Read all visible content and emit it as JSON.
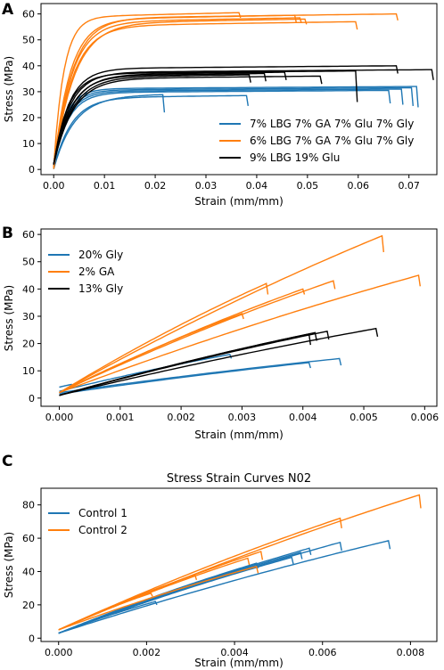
{
  "chart_data": [
    {
      "panel_label": "A",
      "type": "line",
      "title": "",
      "xlabel": "Strain (mm/mm)",
      "ylabel": "Stress (MPa)",
      "xlim": [
        -0.0025,
        0.0755
      ],
      "ylim": [
        -2,
        64
      ],
      "xticks": [
        0.0,
        0.01,
        0.02,
        0.03,
        0.04,
        0.05,
        0.06,
        0.07
      ],
      "xtick_labels": [
        "0.00",
        "0.01",
        "0.02",
        "0.03",
        "0.04",
        "0.05",
        "0.06",
        "0.07"
      ],
      "yticks": [
        0,
        10,
        20,
        30,
        40,
        50,
        60
      ],
      "ytick_labels": [
        "0",
        "10",
        "20",
        "30",
        "40",
        "50",
        "60"
      ],
      "grid": false,
      "legend": "lower-right",
      "series": [
        {
          "name": "7% LBG 7% GA 7% Glu 7% Gly",
          "color": "#1f77b4",
          "curves": [
            {
              "peak": 29,
              "knee": 0.012,
              "end": 0.0215,
              "drop": 7,
              "start": 1
            },
            {
              "peak": 31,
              "knee": 0.008,
              "end": 0.0685,
              "drop": 6,
              "start": 2
            },
            {
              "peak": 31.5,
              "knee": 0.0075,
              "end": 0.0705,
              "drop": 7,
              "start": 2
            },
            {
              "peak": 32,
              "knee": 0.007,
              "end": 0.0715,
              "drop": 8,
              "start": 3
            },
            {
              "peak": 30.5,
              "knee": 0.0085,
              "end": 0.066,
              "drop": 5,
              "start": 2
            },
            {
              "peak": 28.5,
              "knee": 0.0105,
              "end": 0.038,
              "drop": 4,
              "start": 1
            }
          ]
        },
        {
          "name": "6% LBG 7% GA 7% Glu 7% Gly",
          "color": "#ff7f0e",
          "curves": [
            {
              "peak": 60.5,
              "knee": 0.006,
              "end": 0.0365,
              "drop": 2,
              "start": 3
            },
            {
              "peak": 59.5,
              "knee": 0.0095,
              "end": 0.0475,
              "drop": 3,
              "start": 2
            },
            {
              "peak": 58.5,
              "knee": 0.0105,
              "end": 0.0485,
              "drop": 2,
              "start": 2
            },
            {
              "peak": 57,
              "knee": 0.011,
              "end": 0.0595,
              "drop": 3,
              "start": 2
            },
            {
              "peak": 60,
              "knee": 0.0105,
              "end": 0.0675,
              "drop": 2.5,
              "start": 2
            },
            {
              "peak": 58,
              "knee": 0.012,
              "end": 0.0495,
              "drop": 2,
              "start": 2
            }
          ]
        },
        {
          "name": "9% LBG 19% Glu",
          "color": "#000000",
          "curves": [
            {
              "peak": 38,
              "knee": 0.0085,
              "end": 0.0595,
              "drop": 12,
              "start": 3
            },
            {
              "peak": 40,
              "knee": 0.009,
              "end": 0.0675,
              "drop": 3,
              "start": 3
            },
            {
              "peak": 38.5,
              "knee": 0.0095,
              "end": 0.0745,
              "drop": 4,
              "start": 3
            },
            {
              "peak": 37.5,
              "knee": 0.0105,
              "end": 0.0455,
              "drop": 3,
              "start": 3
            },
            {
              "peak": 36.5,
              "knee": 0.011,
              "end": 0.0385,
              "drop": 3,
              "start": 3
            },
            {
              "peak": 36,
              "knee": 0.0115,
              "end": 0.0525,
              "drop": 3,
              "start": 3
            },
            {
              "peak": 37,
              "knee": 0.01,
              "end": 0.0415,
              "drop": 3,
              "start": 3
            }
          ]
        }
      ]
    },
    {
      "panel_label": "B",
      "type": "line",
      "title": "",
      "xlabel": "Strain (mm/mm)",
      "ylabel": "Stress (MPa)",
      "xlim": [
        -0.0003,
        0.0062
      ],
      "ylim": [
        -3,
        62
      ],
      "xticks": [
        0.0,
        0.001,
        0.002,
        0.003,
        0.004,
        0.005,
        0.006
      ],
      "xtick_labels": [
        "0.000",
        "0.001",
        "0.002",
        "0.003",
        "0.004",
        "0.005",
        "0.006"
      ],
      "yticks": [
        0,
        10,
        20,
        30,
        40,
        50,
        60
      ],
      "ytick_labels": [
        "0",
        "10",
        "20",
        "30",
        "40",
        "50",
        "60"
      ],
      "grid": false,
      "legend": "upper-left",
      "series": [
        {
          "name": "20% Gly",
          "color": "#1f77b4",
          "curves": [
            {
              "peak": 14.5,
              "end": 0.0046,
              "drop": 2.5,
              "start": 2
            },
            {
              "peak": 13,
              "end": 0.0041,
              "drop": 2,
              "start": 1.5
            },
            {
              "peak": 16,
              "end": 0.0028,
              "drop": 1.5,
              "start": 2.5
            },
            {
              "peak": 5,
              "end": 0.0002,
              "drop": 1,
              "start": 4
            }
          ]
        },
        {
          "name": "2% GA",
          "color": "#ff7f0e",
          "curves": [
            {
              "peak": 59.5,
              "end": 0.0053,
              "drop": 6,
              "start": 2
            },
            {
              "peak": 45,
              "end": 0.0059,
              "drop": 4,
              "start": 2
            },
            {
              "peak": 43,
              "end": 0.0045,
              "drop": 3,
              "start": 2
            },
            {
              "peak": 42,
              "end": 0.0034,
              "drop": 4,
              "start": 2
            },
            {
              "peak": 40,
              "end": 0.004,
              "drop": 2,
              "start": 2
            },
            {
              "peak": 31,
              "end": 0.003,
              "drop": 2,
              "start": 2
            }
          ]
        },
        {
          "name": "13% Gly",
          "color": "#000000",
          "curves": [
            {
              "peak": 25.5,
              "end": 0.0052,
              "drop": 3,
              "start": 1
            },
            {
              "peak": 24.5,
              "end": 0.0044,
              "drop": 3,
              "start": 1
            },
            {
              "peak": 24,
              "end": 0.0042,
              "drop": 3,
              "start": 1
            },
            {
              "peak": 23.5,
              "end": 0.0041,
              "drop": 4,
              "start": 1
            }
          ]
        }
      ]
    },
    {
      "panel_label": "C",
      "type": "line",
      "title": "Stress Strain Curves N02",
      "xlabel": "Strain (mm/mm)",
      "ylabel": "Stress (MPa)",
      "xlim": [
        -0.0004,
        0.0086
      ],
      "ylim": [
        -2,
        90
      ],
      "xticks": [
        0.0,
        0.002,
        0.004,
        0.006,
        0.008
      ],
      "xtick_labels": [
        "0.000",
        "0.002",
        "0.004",
        "0.006",
        "0.008"
      ],
      "yticks": [
        0,
        20,
        40,
        60,
        80
      ],
      "ytick_labels": [
        "0",
        "20",
        "40",
        "60",
        "80"
      ],
      "grid": false,
      "legend": "upper-left",
      "series": [
        {
          "name": "Control 1",
          "color": "#1f77b4",
          "curves": [
            {
              "peak": 58.5,
              "end": 0.0075,
              "drop": 5,
              "start": 3
            },
            {
              "peak": 57.5,
              "end": 0.0064,
              "drop": 5,
              "start": 3
            },
            {
              "peak": 54,
              "end": 0.0057,
              "drop": 4,
              "start": 3
            },
            {
              "peak": 51.5,
              "end": 0.0055,
              "drop": 4,
              "start": 3
            },
            {
              "peak": 48.5,
              "end": 0.0053,
              "drop": 4,
              "start": 3
            },
            {
              "peak": 45,
              "end": 0.0045,
              "drop": 3,
              "start": 3
            },
            {
              "peak": 22,
              "end": 0.0022,
              "drop": 2,
              "start": 3
            }
          ]
        },
        {
          "name": "Control 2",
          "color": "#ff7f0e",
          "curves": [
            {
              "peak": 86,
              "end": 0.0082,
              "drop": 8,
              "start": 5
            },
            {
              "peak": 72,
              "end": 0.0064,
              "drop": 6,
              "start": 5
            },
            {
              "peak": 52,
              "end": 0.0046,
              "drop": 5,
              "start": 5
            },
            {
              "peak": 48,
              "end": 0.0043,
              "drop": 4,
              "start": 5
            },
            {
              "peak": 43,
              "end": 0.0045,
              "drop": 4,
              "start": 5
            },
            {
              "peak": 38,
              "end": 0.0031,
              "drop": 3,
              "start": 5
            },
            {
              "peak": 27,
              "end": 0.0021,
              "drop": 2,
              "start": 5
            }
          ]
        }
      ]
    }
  ]
}
